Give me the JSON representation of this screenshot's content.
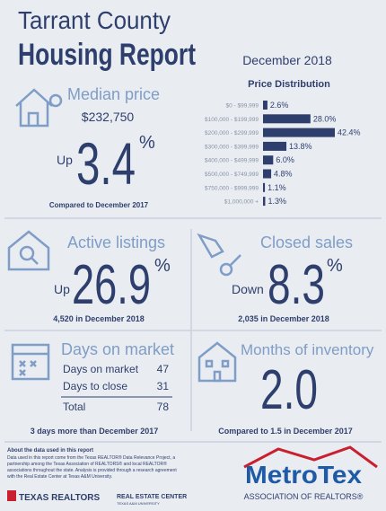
{
  "header": {
    "title_line1": "Tarrant County",
    "title_line2": "Housing Report",
    "period": "December 2018"
  },
  "chart_data": {
    "type": "bar",
    "orientation": "horizontal",
    "title": "Price Distribution",
    "color": "#2f3f6d",
    "categories": [
      "$0 - $99,999",
      "$100,000 - $199,999",
      "$200,000 - $299,999",
      "$300,000 - $399,999",
      "$400,000 - $499,999",
      "$500,000 - $749,999",
      "$750,000 - $999,999",
      "$1,000,000 +"
    ],
    "values": [
      2.6,
      28.0,
      42.4,
      13.8,
      6.0,
      4.8,
      1.1,
      1.3
    ],
    "value_labels": [
      "2.6%",
      "28.0%",
      "42.4%",
      "13.8%",
      "6.0%",
      "4.8%",
      "1.1%",
      "1.3%"
    ]
  },
  "percent_sign": "%",
  "median_price": {
    "title": "Median price",
    "price": "$232,750",
    "direction": "Up",
    "change": "3.4",
    "note": "Compared to December 2017"
  },
  "active_listings": {
    "title": "Active listings",
    "direction": "Up",
    "change": "26.9",
    "note": "4,520 in December 2018"
  },
  "closed_sales": {
    "title": "Closed sales",
    "direction": "Down",
    "change": "8.3",
    "note": "2,035 in December 2018"
  },
  "days_on_market": {
    "title": "Days on market",
    "rows": [
      [
        "Days on market",
        "47"
      ],
      [
        "Days to close",
        "31"
      ],
      [
        "Total",
        "78"
      ]
    ],
    "note": "3 days more than December 2017"
  },
  "months_of_inventory": {
    "title": "Months of inventory",
    "value": "2.0",
    "note": "Compared to 1.5 in December 2017"
  },
  "footer": {
    "heading": "About the data used in this report",
    "lines": [
      "Data used in this report come from the Texas REALTOR® Data Relevance Project, a",
      "partnership among the Texas Association of REALTORS® and local REALTOR®",
      "associations throughout the state. Analysis is provided through a research agreement",
      "with the Real Estate Center at Texas A&M University."
    ],
    "logo1": "TEXAS REALTORS",
    "logo2": "REAL ESTATE CENTER",
    "logo2_sub": "TEXAS A&M UNIVERSITY",
    "metrotex": "MetroTex",
    "metrotex_sub": "ASSOCIATION OF REALTORS®"
  }
}
